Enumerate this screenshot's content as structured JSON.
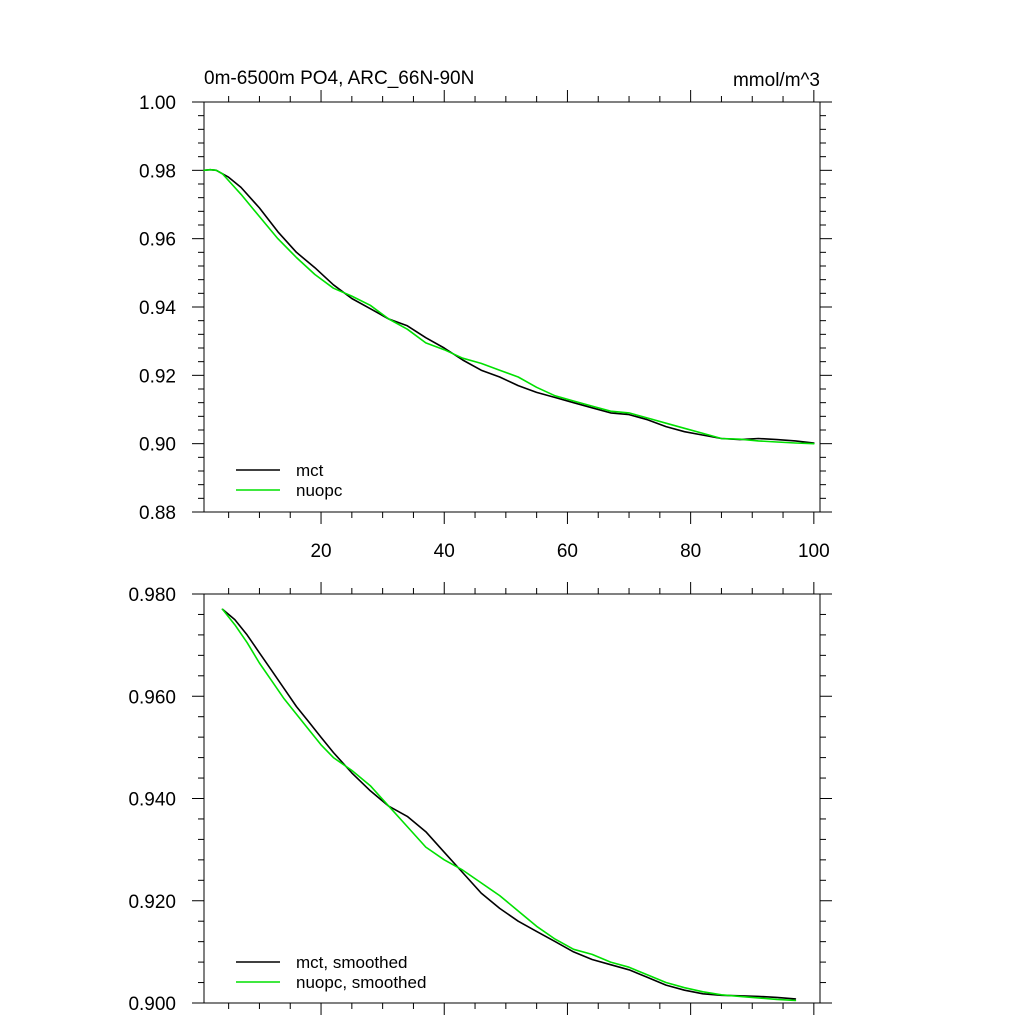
{
  "colors": {
    "mct": "#000000",
    "nuopc": "#00e000"
  },
  "chart_data": [
    {
      "type": "line",
      "title": "0m-6500m PO4, ARC_66N-90N",
      "units": "mmol/m^3",
      "xlabel": "",
      "ylabel": "",
      "xlim": [
        1,
        101
      ],
      "ylim": [
        0.88,
        1.0
      ],
      "x_ticks": [
        20,
        40,
        60,
        80,
        100
      ],
      "x_tick_labels": [
        "20",
        "40",
        "60",
        "80",
        "100"
      ],
      "y_ticks": [
        0.88,
        0.9,
        0.92,
        0.94,
        0.96,
        0.98,
        1.0
      ],
      "y_tick_labels": [
        "0.88",
        "0.90",
        "0.92",
        "0.94",
        "0.96",
        "0.98",
        "1.00"
      ],
      "legend": [
        "mct",
        "nuopc"
      ],
      "legend_position": "bottom-left",
      "series": [
        {
          "name": "mct",
          "color_key": "mct",
          "x": [
            1,
            2,
            3,
            4,
            5,
            7,
            10,
            13,
            16,
            19,
            22,
            25,
            28,
            31,
            34,
            37,
            40,
            43,
            46,
            49,
            52,
            55,
            58,
            61,
            64,
            67,
            70,
            73,
            76,
            79,
            82,
            85,
            88,
            91,
            94,
            97,
            100
          ],
          "y": [
            0.98,
            0.9802,
            0.98,
            0.979,
            0.978,
            0.975,
            0.969,
            0.962,
            0.956,
            0.9515,
            0.9465,
            0.9425,
            0.9395,
            0.9365,
            0.9345,
            0.931,
            0.928,
            0.9245,
            0.9215,
            0.9195,
            0.917,
            0.915,
            0.9135,
            0.912,
            0.9105,
            0.909,
            0.9085,
            0.907,
            0.905,
            0.9035,
            0.9025,
            0.9015,
            0.9012,
            0.9015,
            0.9012,
            0.9008,
            0.9002
          ]
        },
        {
          "name": "nuopc",
          "color_key": "nuopc",
          "x": [
            1,
            2,
            3,
            4,
            5,
            7,
            10,
            13,
            16,
            19,
            22,
            25,
            28,
            31,
            34,
            37,
            40,
            43,
            46,
            49,
            52,
            55,
            58,
            61,
            64,
            67,
            70,
            73,
            76,
            79,
            82,
            85,
            88,
            91,
            94,
            97,
            100
          ],
          "y": [
            0.98,
            0.9802,
            0.98,
            0.979,
            0.977,
            0.973,
            0.9665,
            0.96,
            0.9545,
            0.9495,
            0.9455,
            0.9432,
            0.9405,
            0.9365,
            0.9335,
            0.9295,
            0.9275,
            0.925,
            0.9235,
            0.9215,
            0.9195,
            0.9165,
            0.914,
            0.9125,
            0.911,
            0.9095,
            0.909,
            0.9075,
            0.906,
            0.9045,
            0.903,
            0.9015,
            0.9013,
            0.9008,
            0.9005,
            0.9002,
            0.9
          ]
        }
      ]
    },
    {
      "type": "line",
      "title": "",
      "xlabel": "",
      "ylabel": "",
      "xlim": [
        1,
        101
      ],
      "ylim": [
        0.9,
        0.98
      ],
      "x_ticks": [
        20,
        40,
        60,
        80,
        100
      ],
      "x_tick_labels": [],
      "y_ticks": [
        0.9,
        0.92,
        0.94,
        0.96,
        0.98
      ],
      "y_tick_labels": [
        "0.900",
        "0.920",
        "0.940",
        "0.960",
        "0.980"
      ],
      "legend": [
        "mct, smoothed",
        "nuopc, smoothed"
      ],
      "legend_position": "bottom-left",
      "series": [
        {
          "name": "mct, smoothed",
          "color_key": "mct",
          "x": [
            4,
            6,
            8,
            10,
            12,
            14,
            16,
            18,
            20,
            22,
            25,
            28,
            31,
            34,
            37,
            40,
            43,
            46,
            49,
            52,
            55,
            58,
            61,
            64,
            67,
            70,
            73,
            76,
            79,
            82,
            85,
            88,
            91,
            94,
            97
          ],
          "y": [
            0.977,
            0.975,
            0.972,
            0.9685,
            0.965,
            0.9615,
            0.958,
            0.955,
            0.952,
            0.949,
            0.945,
            0.9415,
            0.9385,
            0.9365,
            0.9335,
            0.9295,
            0.9255,
            0.9215,
            0.9185,
            0.916,
            0.914,
            0.912,
            0.91,
            0.9085,
            0.9075,
            0.9065,
            0.905,
            0.9035,
            0.9025,
            0.9018,
            0.9015,
            0.9014,
            0.9013,
            0.9011,
            0.9008
          ]
        },
        {
          "name": "nuopc, smoothed",
          "color_key": "nuopc",
          "x": [
            4,
            6,
            8,
            10,
            12,
            14,
            16,
            18,
            20,
            22,
            25,
            28,
            31,
            34,
            37,
            40,
            43,
            46,
            49,
            52,
            55,
            58,
            61,
            64,
            67,
            70,
            73,
            76,
            79,
            82,
            85,
            88,
            91,
            94,
            97
          ],
          "y": [
            0.977,
            0.974,
            0.9705,
            0.9665,
            0.963,
            0.9595,
            0.9565,
            0.9535,
            0.9505,
            0.948,
            0.9455,
            0.9425,
            0.9385,
            0.9345,
            0.9305,
            0.928,
            0.926,
            0.9235,
            0.921,
            0.918,
            0.915,
            0.9125,
            0.9105,
            0.9095,
            0.908,
            0.907,
            0.9055,
            0.904,
            0.903,
            0.9022,
            0.9016,
            0.9013,
            0.901,
            0.9007,
            0.9005
          ]
        }
      ]
    }
  ]
}
